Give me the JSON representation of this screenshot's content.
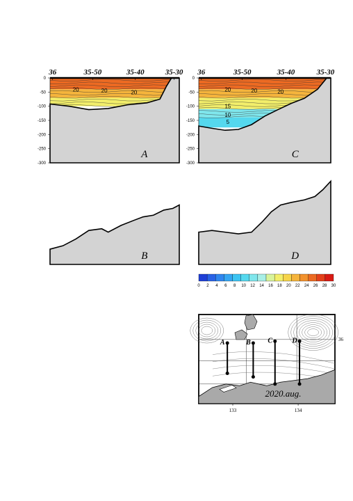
{
  "chart_data": [
    {
      "type": "heatmap",
      "panel": "A",
      "x_tick_labels": [
        "36",
        "35-50",
        "35-40",
        "35-30"
      ],
      "depth_ticks": [
        0,
        -50,
        -100,
        -150,
        -200,
        -250,
        -300
      ],
      "ylim": [
        -300,
        0
      ],
      "contour_labels": [
        {
          "text": "20"
        },
        {
          "text": "20"
        },
        {
          "text": "20"
        }
      ],
      "seafloor_depth": [
        [
          0,
          -92
        ],
        [
          0.15,
          -100
        ],
        [
          0.3,
          -112
        ],
        [
          0.45,
          -108
        ],
        [
          0.6,
          -95
        ],
        [
          0.75,
          -88
        ],
        [
          0.85,
          -75
        ],
        [
          0.9,
          -30
        ],
        [
          0.94,
          0
        ]
      ],
      "layers": [
        {
          "from": 0,
          "to": -40,
          "temp": 26
        },
        {
          "from": -40,
          "to": -70,
          "temp": 22
        },
        {
          "from": -70,
          "to": -100,
          "temp": 18
        }
      ]
    },
    {
      "type": "area",
      "panel": "B",
      "x_tick_labels": [],
      "seafloor_profile": [
        [
          0,
          0.18
        ],
        [
          0.1,
          0.22
        ],
        [
          0.2,
          0.3
        ],
        [
          0.3,
          0.4
        ],
        [
          0.4,
          0.42
        ],
        [
          0.45,
          0.38
        ],
        [
          0.55,
          0.46
        ],
        [
          0.65,
          0.52
        ],
        [
          0.72,
          0.56
        ],
        [
          0.8,
          0.58
        ],
        [
          0.88,
          0.64
        ],
        [
          0.95,
          0.66
        ],
        [
          1.0,
          0.7
        ]
      ]
    },
    {
      "type": "heatmap",
      "panel": "C",
      "x_tick_labels": [
        "36",
        "35-50",
        "35-40",
        "35-30"
      ],
      "depth_ticks": [
        0,
        -50,
        -100,
        -150,
        -200,
        -250,
        -300
      ],
      "ylim": [
        -300,
        0
      ],
      "contour_labels": [
        {
          "text": "20"
        },
        {
          "text": "20"
        },
        {
          "text": "20"
        },
        {
          "text": "15"
        },
        {
          "text": "10"
        },
        {
          "text": "5"
        }
      ],
      "seafloor_depth": [
        [
          0,
          -170
        ],
        [
          0.1,
          -178
        ],
        [
          0.2,
          -185
        ],
        [
          0.3,
          -182
        ],
        [
          0.4,
          -165
        ],
        [
          0.5,
          -135
        ],
        [
          0.6,
          -112
        ],
        [
          0.7,
          -90
        ],
        [
          0.8,
          -72
        ],
        [
          0.9,
          -40
        ],
        [
          0.97,
          0
        ]
      ],
      "layers": [
        {
          "from": 0,
          "to": -40,
          "temp": 26
        },
        {
          "from": -40,
          "to": -70,
          "temp": 22
        },
        {
          "from": -70,
          "to": -110,
          "temp": 18
        },
        {
          "from": -110,
          "to": -140,
          "temp": 13
        },
        {
          "from": -140,
          "to": -175,
          "temp": 10
        }
      ]
    },
    {
      "type": "area",
      "panel": "D",
      "x_tick_labels": [],
      "seafloor_profile": [
        [
          0,
          0.38
        ],
        [
          0.1,
          0.4
        ],
        [
          0.2,
          0.38
        ],
        [
          0.3,
          0.36
        ],
        [
          0.4,
          0.38
        ],
        [
          0.48,
          0.5
        ],
        [
          0.55,
          0.62
        ],
        [
          0.62,
          0.7
        ],
        [
          0.7,
          0.73
        ],
        [
          0.8,
          0.76
        ],
        [
          0.88,
          0.8
        ],
        [
          0.94,
          0.88
        ],
        [
          1.0,
          0.98
        ]
      ]
    },
    {
      "type": "colorbar",
      "ticks": [
        "0",
        "2",
        "4",
        "6",
        "8",
        "10",
        "12",
        "14",
        "16",
        "18",
        "20",
        "22",
        "24",
        "26",
        "28",
        "30"
      ],
      "colors": [
        "#1f3fd6",
        "#2962e6",
        "#2f86ef",
        "#35a6f2",
        "#3cc4f2",
        "#55d8ee",
        "#7fe6ec",
        "#a8efe6",
        "#d8f39a",
        "#f2ee6a",
        "#f6d44a",
        "#f5b43c",
        "#f2922e",
        "#ec6a22",
        "#e4401a",
        "#d81a14"
      ]
    },
    {
      "type": "map",
      "date_label": "2020.aug.",
      "x_tick_labels": [
        "133",
        "134"
      ],
      "y_tick_labels": [
        "36"
      ],
      "stations": [
        {
          "label": "A",
          "top": [
            0.21,
            0.32
          ],
          "bottom": [
            0.21,
            0.66
          ]
        },
        {
          "label": "B",
          "top": [
            0.4,
            0.32
          ],
          "bottom": [
            0.4,
            0.7
          ]
        },
        {
          "label": "C",
          "top": [
            0.56,
            0.3
          ],
          "bottom": [
            0.56,
            0.78
          ]
        },
        {
          "label": "D",
          "top": [
            0.74,
            0.3
          ],
          "bottom": [
            0.74,
            0.78
          ]
        }
      ]
    }
  ]
}
